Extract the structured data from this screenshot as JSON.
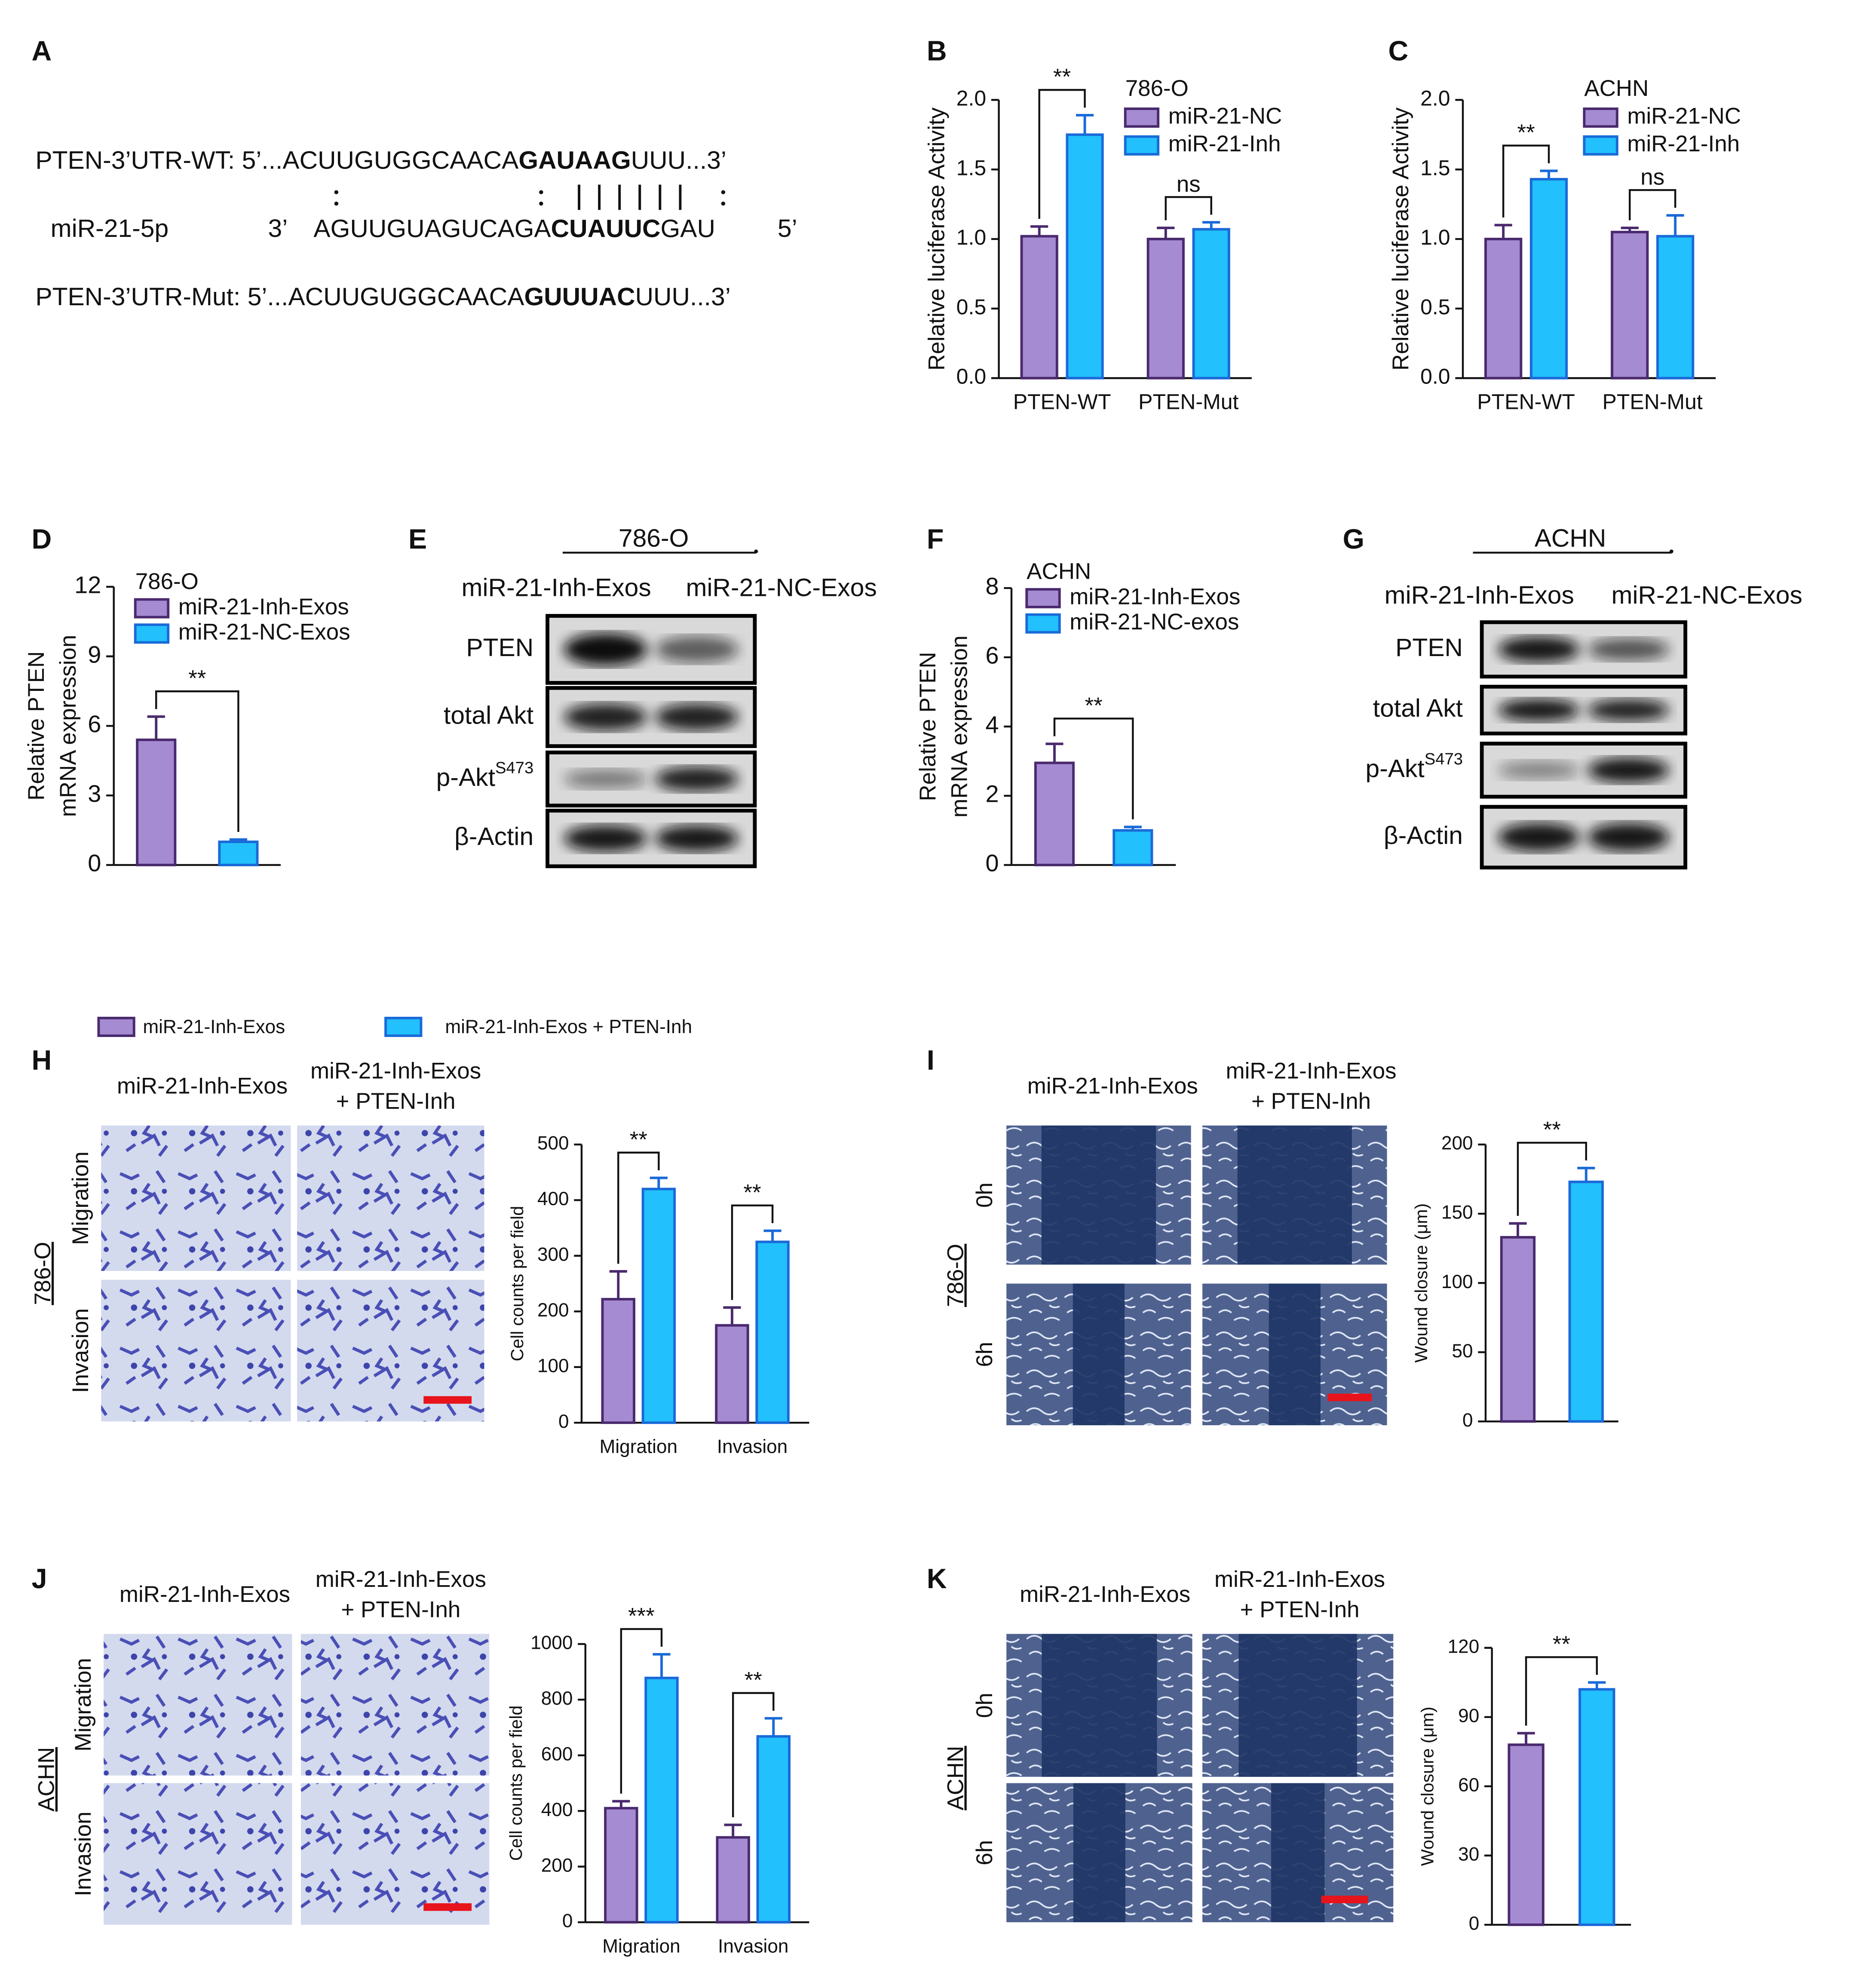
{
  "panel_labels": [
    "A",
    "B",
    "C",
    "D",
    "E",
    "F",
    "G",
    "H",
    "I",
    "J",
    "K"
  ],
  "sequence": {
    "wt": {
      "head": "PTEN-3’UTR-WT: 5’...ACUUGUGGCAACA",
      "seed": "GAUAAG",
      "tail": "UUU...3’"
    },
    "mirna": {
      "name": "miR-21-5p",
      "end3": "3’",
      "head": "AGUUGUAGUCAGA",
      "seed": "CUAUUC",
      "tail": "GAU",
      "end5": "5’"
    },
    "mut": {
      "head": "PTEN-3’UTR-Mut: 5’...ACUUGUGGCAACA",
      "seed": "GUUUAC",
      "tail": "UUU...3’"
    }
  },
  "blots": [
    {
      "cell_line": "786-O",
      "columns": [
        "miR-21-Inh-Exos",
        "miR-21-NC-Exos"
      ],
      "rows": [
        "PTEN",
        "total Akt",
        {
          "name": "p-Akt",
          "sup": "S473"
        },
        "β-Actin"
      ]
    },
    {
      "cell_line": "ACHN",
      "columns": [
        "miR-21-Inh-Exos",
        "miR-21-NC-Exos"
      ],
      "rows": [
        "PTEN",
        "total Akt",
        {
          "name": "p-Akt",
          "sup": "S473"
        },
        "β-Actin"
      ]
    }
  ],
  "images": [
    {
      "cell_line": "786-O",
      "columns": [
        [
          "miR-21-Inh-Exos"
        ],
        [
          "miR-21-Inh-Exos",
          "+ PTEN-Inh"
        ]
      ],
      "rows": [
        "Migration",
        "Invasion"
      ]
    },
    {
      "cell_line": "786-O",
      "columns": [
        [
          "miR-21-Inh-Exos"
        ],
        [
          "miR-21-Inh-Exos",
          "+ PTEN-Inh"
        ]
      ],
      "rows": [
        "0h",
        "6h"
      ]
    },
    {
      "cell_line": "ACHN",
      "columns": [
        [
          "miR-21-Inh-Exos"
        ],
        [
          "miR-21-Inh-Exos",
          "+ PTEN-Inh"
        ]
      ],
      "rows": [
        "Migration",
        "Invasion"
      ]
    },
    {
      "cell_line": "ACHN",
      "columns": [
        [
          "miR-21-Inh-Exos"
        ],
        [
          "miR-21-Inh-Exos",
          "+ PTEN-Inh"
        ]
      ],
      "rows": [
        "0h",
        "6h"
      ]
    }
  ],
  "chart_data": [
    {
      "type": "bar",
      "legend_title": "786-O",
      "ylabel": [
        "Relative luciferase Activity"
      ],
      "categories": [
        "PTEN-WT",
        "PTEN-Mut"
      ],
      "series": [
        {
          "name": "miR-21-NC",
          "color": "#a58bd1",
          "edgecolor": "#4a2a6e",
          "values": [
            1.02,
            1.0
          ],
          "errors": [
            0.07,
            0.08
          ]
        },
        {
          "name": "miR-21-Inh",
          "color": "#22c0fc",
          "edgecolor": "#1a6ad8",
          "values": [
            1.75,
            1.07
          ],
          "errors": [
            0.14,
            0.05
          ]
        }
      ],
      "ylim": [
        0,
        2
      ],
      "yticks": [
        {
          "value": 0,
          "label": "0.0"
        },
        0.5,
        {
          "value": 1,
          "label": "1.0"
        },
        1.5,
        {
          "value": 2,
          "label": "2.0"
        }
      ],
      "annotations": [
        {
          "text": "**",
          "category": 0
        },
        {
          "text": "ns",
          "category": 1
        }
      ]
    },
    {
      "type": "bar",
      "legend_title": "ACHN",
      "ylabel": [
        "Relative luciferase Activity"
      ],
      "categories": [
        "PTEN-WT",
        "PTEN-Mut"
      ],
      "series": [
        {
          "name": "miR-21-NC",
          "color": "#a58bd1",
          "edgecolor": "#4a2a6e",
          "values": [
            1.0,
            1.05
          ],
          "errors": [
            0.1,
            0.03
          ]
        },
        {
          "name": "miR-21-Inh",
          "color": "#22c0fc",
          "edgecolor": "#1a6ad8",
          "values": [
            1.43,
            1.02
          ],
          "errors": [
            0.06,
            0.15
          ]
        }
      ],
      "ylim": [
        0,
        2
      ],
      "yticks": [
        {
          "value": 0,
          "label": "0.0"
        },
        0.5,
        {
          "value": 1,
          "label": "1.0"
        },
        1.5,
        {
          "value": 2,
          "label": "2.0"
        }
      ],
      "annotations": [
        {
          "text": "**",
          "category": 0
        },
        {
          "text": "ns",
          "category": 1
        }
      ]
    },
    {
      "type": "bar",
      "legend_title": "786-O",
      "ylabel": [
        "Relative PTEN",
        "mRNA expression"
      ],
      "categories": [
        null
      ],
      "series": [
        {
          "name": "miR-21-Inh-Exos",
          "color": "#a58bd1",
          "edgecolor": "#4a2a6e",
          "values": [
            5.4
          ],
          "errors": [
            1.0
          ]
        },
        {
          "name": "miR-21-NC-Exos",
          "color": "#22c0fc",
          "edgecolor": "#1a6ad8",
          "values": [
            1.0
          ],
          "errors": [
            0.1
          ]
        }
      ],
      "ylim": [
        0,
        12
      ],
      "yticks": [
        0,
        3,
        6,
        9,
        12
      ],
      "annotations": [
        {
          "text": "**",
          "category": 0
        }
      ]
    },
    {
      "type": "bar",
      "legend_title": "ACHN",
      "ylabel": [
        "Relative PTEN",
        "mRNA expression"
      ],
      "categories": [
        null
      ],
      "series": [
        {
          "name": "miR-21-Inh-Exos",
          "color": "#a58bd1",
          "edgecolor": "#4a2a6e",
          "values": [
            2.95
          ],
          "errors": [
            0.55
          ]
        },
        {
          "name": "miR-21-NC-exos",
          "color": "#22c0fc",
          "edgecolor": "#1a6ad8",
          "values": [
            1.0
          ],
          "errors": [
            0.1
          ]
        }
      ],
      "ylim": [
        0,
        8
      ],
      "yticks": [
        0,
        2,
        4,
        6,
        8
      ],
      "annotations": [
        {
          "text": "**",
          "category": 0
        }
      ]
    },
    {
      "type": "bar",
      "ylabel": [
        "Cell counts per field"
      ],
      "categories": [
        "Migration",
        "Invasion"
      ],
      "series": [
        {
          "name": "miR-21-Inh-Exos",
          "color": "#a58bd1",
          "edgecolor": "#4a2a6e",
          "values": [
            222,
            175
          ],
          "errors": [
            50,
            32
          ]
        },
        {
          "name": "miR-21-Inh-Exos + PTEN-Inh",
          "color": "#22c0fc",
          "edgecolor": "#1a6ad8",
          "values": [
            420,
            325
          ],
          "errors": [
            20,
            20
          ]
        }
      ],
      "ylim": [
        0,
        500
      ],
      "yticks": [
        0,
        100,
        200,
        300,
        400,
        500
      ],
      "annotations": [
        {
          "text": "**",
          "category": 0
        },
        {
          "text": "**",
          "category": 1
        }
      ]
    },
    {
      "type": "bar",
      "ylabel": [
        "Wound closure (μm)"
      ],
      "categories": [
        null
      ],
      "series": [
        {
          "color": "#a58bd1",
          "edgecolor": "#4a2a6e",
          "values": [
            133
          ],
          "errors": [
            10
          ]
        },
        {
          "color": "#22c0fc",
          "edgecolor": "#1a6ad8",
          "values": [
            173
          ],
          "errors": [
            10
          ]
        }
      ],
      "ylim": [
        0,
        200
      ],
      "yticks": [
        0,
        50,
        100,
        150,
        200
      ],
      "annotations": [
        {
          "text": "**",
          "category": 0
        }
      ]
    },
    {
      "type": "bar",
      "ylabel": [
        "Cell counts per field"
      ],
      "categories": [
        "Migration",
        "Invasion"
      ],
      "series": [
        {
          "color": "#a58bd1",
          "edgecolor": "#4a2a6e",
          "values": [
            410,
            305
          ],
          "errors": [
            25,
            45
          ]
        },
        {
          "color": "#22c0fc",
          "edgecolor": "#1a6ad8",
          "values": [
            878,
            668
          ],
          "errors": [
            85,
            65
          ]
        }
      ],
      "ylim": [
        0,
        1000
      ],
      "yticks": [
        0,
        200,
        400,
        600,
        800,
        1000
      ],
      "annotations": [
        {
          "text": "***",
          "category": 0
        },
        {
          "text": "**",
          "category": 1
        }
      ]
    },
    {
      "type": "bar",
      "ylabel": [
        "Wound closure (μm)"
      ],
      "categories": [
        null
      ],
      "series": [
        {
          "color": "#a58bd1",
          "edgecolor": "#4a2a6e",
          "values": [
            78
          ],
          "errors": [
            5
          ]
        },
        {
          "color": "#22c0fc",
          "edgecolor": "#1a6ad8",
          "values": [
            102
          ],
          "errors": [
            3
          ]
        }
      ],
      "ylim": [
        0,
        120
      ],
      "yticks": [
        0,
        30,
        60,
        90,
        120
      ],
      "annotations": [
        {
          "text": "**",
          "category": 0
        }
      ]
    }
  ]
}
